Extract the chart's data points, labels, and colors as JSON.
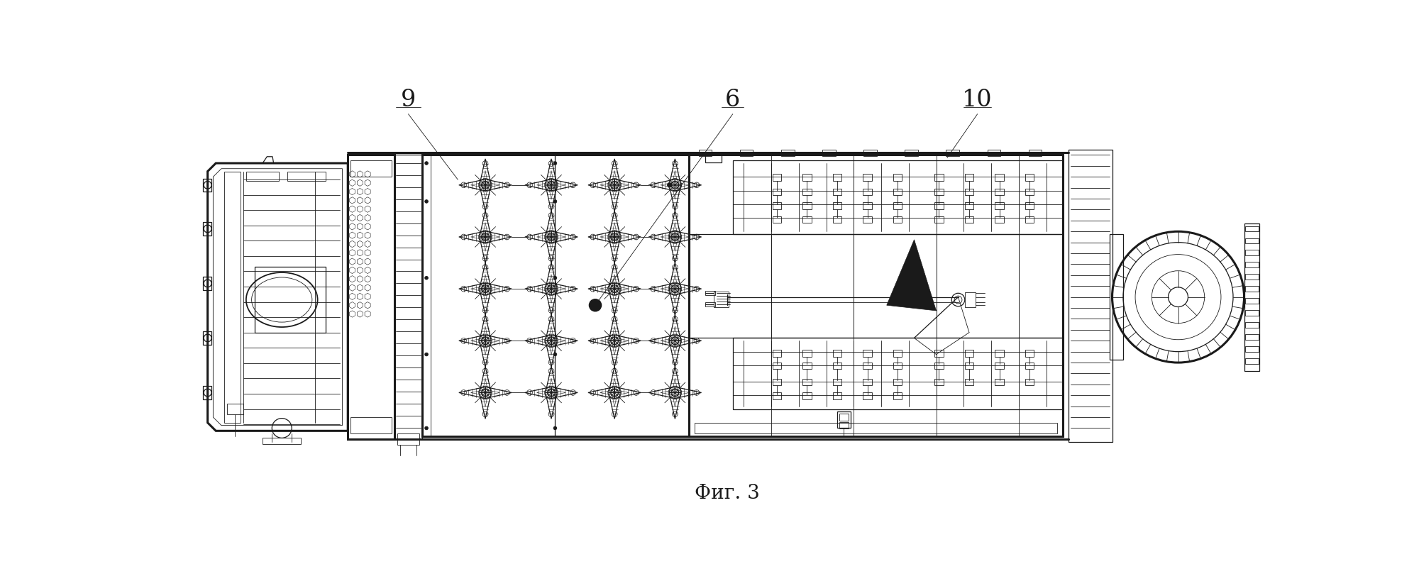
{
  "title": "Фиг. 3",
  "label_9": "9",
  "label_6": "6",
  "label_10": "10",
  "bg_color": "#ffffff",
  "line_color": "#1a1a1a",
  "figsize": [
    20.0,
    8.26
  ],
  "dpi": 100
}
